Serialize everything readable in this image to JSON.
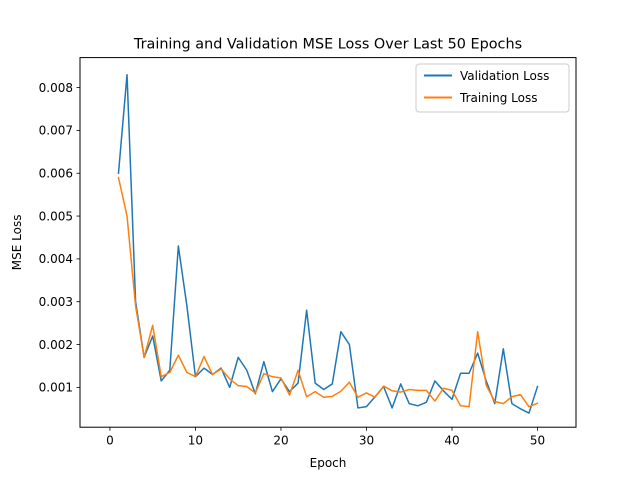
{
  "chart_data": {
    "type": "line",
    "title": "Training and Validation MSE Loss Over Last 50 Epochs",
    "xlabel": "Epoch",
    "ylabel": "MSE Loss",
    "xlim": [
      -3.5,
      54.5
    ],
    "ylim": [
      7e-05,
      0.0087
    ],
    "x_ticks": [
      0,
      10,
      20,
      30,
      40,
      50
    ],
    "y_ticks": [
      0.001,
      0.002,
      0.003,
      0.004,
      0.005,
      0.006,
      0.007,
      0.008
    ],
    "y_tick_labels": [
      "0.001",
      "0.002",
      "0.003",
      "0.004",
      "0.005",
      "0.006",
      "0.007",
      "0.008"
    ],
    "grid": false,
    "legend_position": "top-right",
    "x": [
      1,
      2,
      3,
      4,
      5,
      6,
      7,
      8,
      9,
      10,
      11,
      12,
      13,
      14,
      15,
      16,
      17,
      18,
      19,
      20,
      21,
      22,
      23,
      24,
      25,
      26,
      27,
      28,
      29,
      30,
      31,
      32,
      33,
      34,
      35,
      36,
      37,
      38,
      39,
      40,
      41,
      42,
      43,
      44,
      45,
      46,
      47,
      48,
      49,
      50
    ],
    "series": [
      {
        "name": "Validation Loss",
        "color": "#1f77b4",
        "values": [
          0.006,
          0.0083,
          0.003,
          0.0017,
          0.0022,
          0.00115,
          0.0014,
          0.0043,
          0.0029,
          0.00125,
          0.00145,
          0.0013,
          0.00145,
          0.001,
          0.0017,
          0.0014,
          0.00085,
          0.0016,
          0.0009,
          0.0012,
          0.0009,
          0.0011,
          0.0028,
          0.0011,
          0.00095,
          0.00108,
          0.0023,
          0.002,
          0.00052,
          0.00055,
          0.00078,
          0.00102,
          0.00052,
          0.00108,
          0.00062,
          0.00057,
          0.00065,
          0.00115,
          0.00092,
          0.00072,
          0.00133,
          0.00133,
          0.0018,
          0.00115,
          0.00062,
          0.0019,
          0.00062,
          0.0005,
          0.0004,
          0.00102
        ]
      },
      {
        "name": "Training Loss",
        "color": "#ff7f0e",
        "values": [
          0.0059,
          0.005,
          0.0029,
          0.0017,
          0.00245,
          0.00125,
          0.00135,
          0.00175,
          0.00135,
          0.00125,
          0.00172,
          0.0013,
          0.00143,
          0.0012,
          0.00104,
          0.00102,
          0.00087,
          0.00132,
          0.00125,
          0.00122,
          0.00082,
          0.0014,
          0.00078,
          0.0009,
          0.00077,
          0.00079,
          0.00091,
          0.00112,
          0.00077,
          0.00087,
          0.00077,
          0.00103,
          0.00092,
          0.00089,
          0.00095,
          0.00093,
          0.00093,
          0.00068,
          0.00098,
          0.00093,
          0.00057,
          0.00055,
          0.0023,
          0.00105,
          0.00067,
          0.00062,
          0.00078,
          0.00083,
          0.00055,
          0.00063
        ]
      }
    ]
  }
}
